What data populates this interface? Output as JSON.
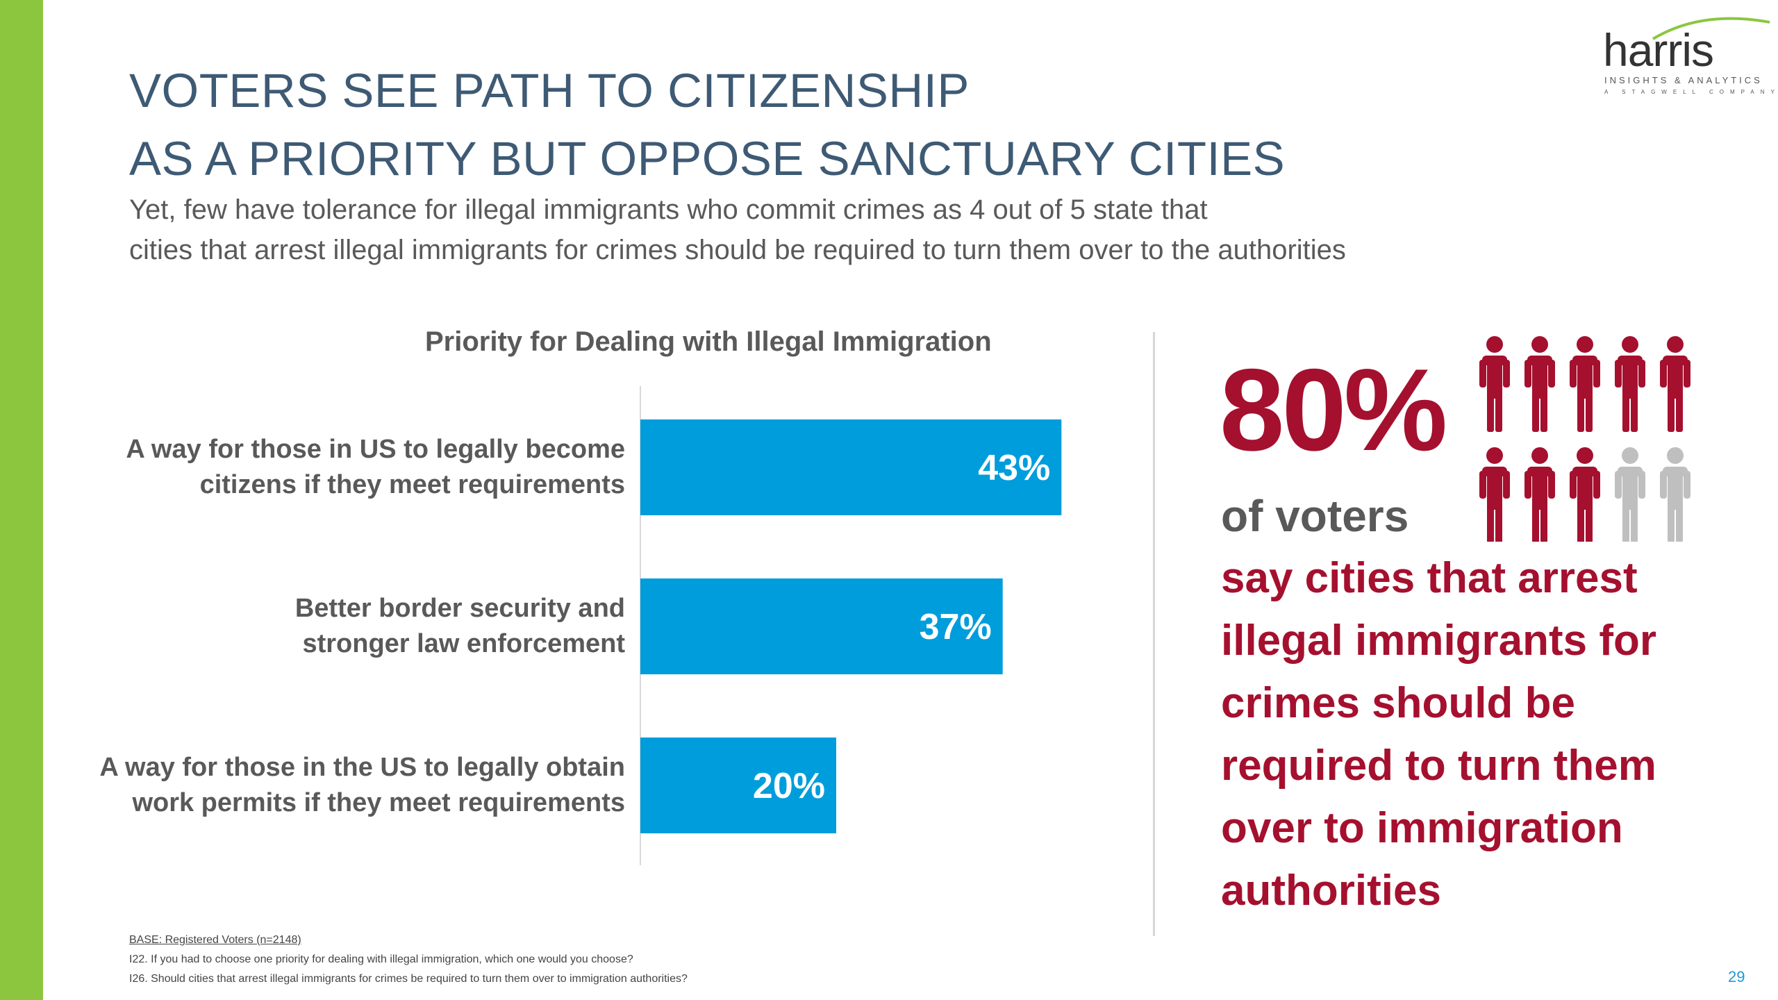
{
  "slide": {
    "title_line1": "VOTERS SEE PATH TO CITIZENSHIP",
    "title_line2": "AS A PRIORITY BUT OPPOSE SANCTUARY CITIES",
    "subtitle_line1": "Yet, few have tolerance for illegal immigrants who commit crimes as 4 out of 5 state that",
    "subtitle_line2": "cities that arrest illegal immigrants for crimes should be required to turn them over to the authorities",
    "page_number": "29"
  },
  "logo": {
    "word": "harris",
    "line1": "INSIGHTS & ANALYTICS",
    "line2": "A STAGWELL COMPANY"
  },
  "chart_data": {
    "type": "bar",
    "orientation": "horizontal",
    "title": "Priority for Dealing with Illegal Immigration",
    "categories": [
      "A way for those in US to legally become\ncitizens if they meet requirements",
      "Better border security and\nstronger law enforcement",
      "A way for those in the US to legally obtain\nwork permits if they meet requirements"
    ],
    "values": [
      43,
      37,
      20
    ],
    "data_labels": [
      "43%",
      "37%",
      "20%"
    ],
    "unit": "%",
    "bar_color": "#009ddc",
    "grid": false,
    "legend": "none"
  },
  "callout": {
    "percent": "80%",
    "of_voters": "of voters",
    "statement": "say cities that arrest illegal immigrants for crimes should be required to turn them over to immigration authorities",
    "people_total": 10,
    "people_highlighted": 8,
    "highlight_color": "#a5102f",
    "rest_color": "#bfbfbf"
  },
  "footnotes": {
    "base": "BASE: Registered Voters (n=2148)",
    "q1": "I22. If you had to choose one priority for dealing with illegal immigration, which one would you choose?",
    "q2": "I26. Should cities that arrest illegal immigrants for crimes be required to turn them over to immigration authorities?"
  },
  "colors": {
    "accent_green": "#8cc63f",
    "title_blue": "#3e5a74",
    "callout_red": "#a5102f"
  }
}
